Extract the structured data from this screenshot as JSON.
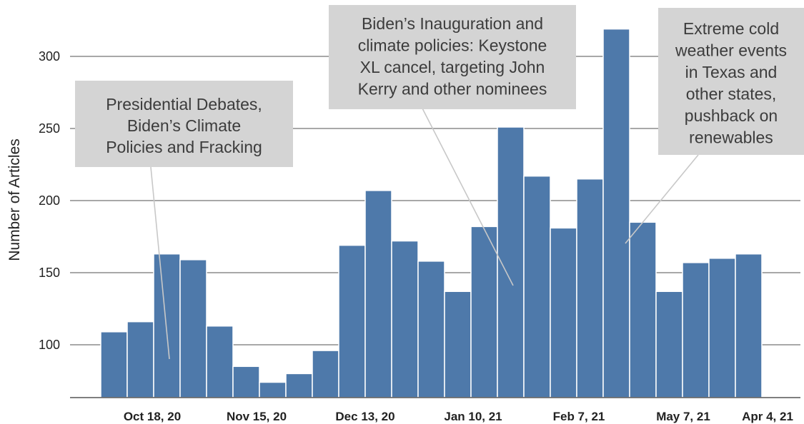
{
  "chart_data": {
    "type": "bar",
    "ylabel": "Number of Articles",
    "xlabel": "",
    "ylim": [
      62,
      322
    ],
    "yticks": [
      100,
      150,
      200,
      250,
      300
    ],
    "grid": true,
    "bar_color": "#4e79aa",
    "values": [
      109,
      116,
      163,
      159,
      113,
      85,
      74,
      80,
      96,
      169,
      207,
      172,
      158,
      137,
      182,
      251,
      217,
      181,
      215,
      319,
      185,
      137,
      157,
      160,
      163
    ],
    "x_tick_labels": [
      "Oct 18, 20",
      "Nov 15, 20",
      "Dec 13, 20",
      "Jan 10, 21",
      "Feb 7, 21",
      "May 7, 21",
      "Apr 4, 21"
    ],
    "annotations": [
      {
        "lines": [
          "Presidential Debates,",
          "Biden’s Climate",
          "Policies and Fracking"
        ],
        "bar_index": 2
      },
      {
        "lines": [
          "Biden’s Inauguration and",
          "climate policies: Keystone",
          "XL cancel, targeting John",
          "Kerry and other nominees"
        ],
        "bar_index": 15
      },
      {
        "lines": [
          "Extreme cold",
          "weather events",
          "in Texas and",
          "other states,",
          "pushback on",
          "renewables"
        ],
        "bar_index": 19
      }
    ]
  }
}
